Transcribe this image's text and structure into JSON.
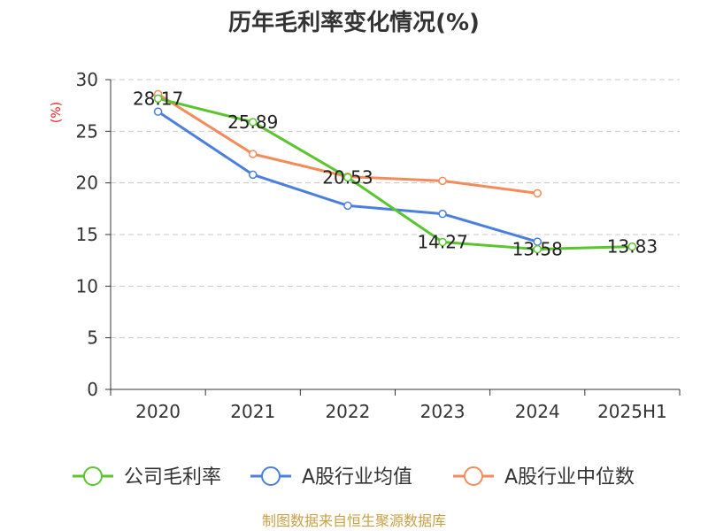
{
  "chart_data": {
    "type": "line",
    "title": "历年毛利率变化情况(%)",
    "ylabel": "(%)",
    "xlabel": "",
    "categories": [
      "2020",
      "2021",
      "2022",
      "2023",
      "2024",
      "2025H1"
    ],
    "ylim": [
      0,
      30
    ],
    "yticks": [
      0,
      5,
      10,
      15,
      20,
      25,
      30
    ],
    "grid": true,
    "legend_position": "bottom",
    "series": [
      {
        "name": "公司毛利率",
        "color": "#5ac52e",
        "values": [
          28.17,
          25.89,
          20.53,
          14.27,
          13.58,
          13.83
        ],
        "labels": [
          "28.17",
          "25.89",
          "20.53",
          "14.27",
          "13.58",
          "13.83"
        ]
      },
      {
        "name": "A股行业均值",
        "color": "#4a7fdd",
        "values": [
          26.9,
          20.8,
          17.8,
          17.0,
          14.3,
          null
        ]
      },
      {
        "name": "A股行业中位数",
        "color": "#f58b5a",
        "values": [
          28.6,
          22.8,
          20.6,
          20.2,
          19.0,
          null
        ]
      }
    ]
  },
  "source": {
    "text": "制图数据来自恒生聚源数据库",
    "color": "#c8a046"
  },
  "ylabel_color": "#e02020"
}
